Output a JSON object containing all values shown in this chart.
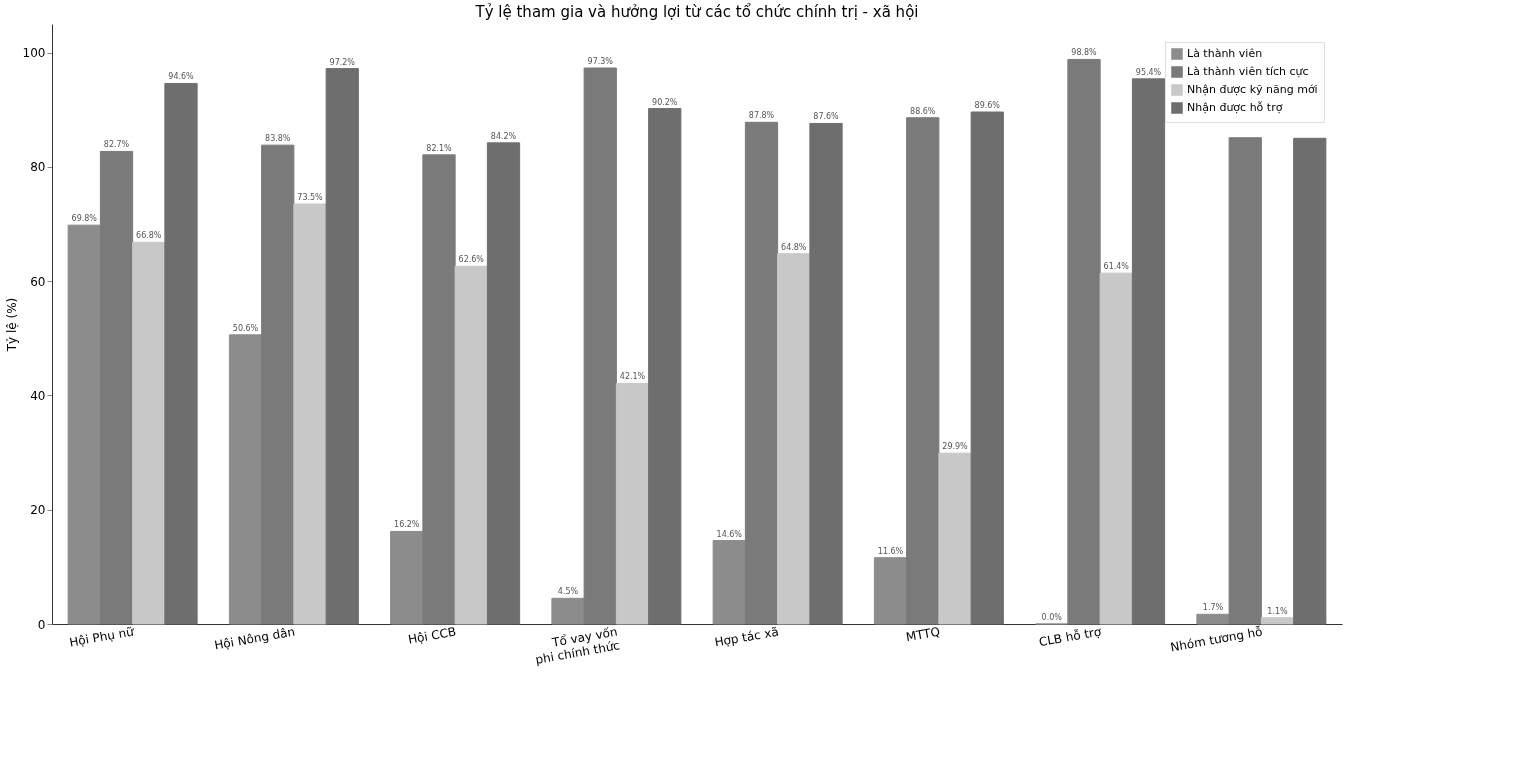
{
  "chart_data": {
    "type": "bar",
    "title": "Tỷ lệ tham gia và hưởng lợi từ các tổ chức chính trị - xã hội",
    "ylabel": "Tỷ lệ (%)",
    "categories": [
      "Hội Phụ nữ",
      "Hội Nông dân",
      "Hội CCB",
      "Tổ vay vốn\nphi chính thức",
      "Hợp tác xã",
      "MTTQ",
      "CLB hỗ trợ",
      "Nhóm tương hỗ"
    ],
    "series": [
      {
        "name": "Là thành viên",
        "color": "#8c8c8c",
        "values": [
          69.8,
          50.6,
          16.2,
          4.5,
          14.6,
          11.6,
          0.0,
          1.7
        ],
        "value_labels": [
          "69.8%",
          "50.6%",
          "16.2%",
          "4.5%",
          "14.6%",
          "11.6%",
          "0.0%",
          "1.7%"
        ]
      },
      {
        "name": "Là thành viên tích cực",
        "color": "#7a7a7a",
        "values": [
          82.7,
          83.8,
          82.1,
          97.3,
          87.8,
          88.6,
          98.8,
          85.1
        ],
        "value_labels": [
          "82.7%",
          "83.8%",
          "82.1%",
          "97.3%",
          "87.8%",
          "88.6%",
          "98.8%",
          null
        ]
      },
      {
        "name": "Nhận được kỹ năng mới",
        "color": "#c8c8c8",
        "values": [
          66.8,
          73.5,
          62.6,
          42.1,
          64.8,
          29.9,
          61.4,
          1.1
        ],
        "value_labels": [
          "66.8%",
          "73.5%",
          "62.6%",
          "42.1%",
          "64.8%",
          "29.9%",
          "61.4%",
          "1.1%"
        ]
      },
      {
        "name": "Nhận được hỗ trợ",
        "color": "#6e6e6e",
        "values": [
          94.6,
          97.2,
          84.2,
          90.2,
          87.6,
          89.6,
          95.4,
          85.0
        ],
        "value_labels": [
          "94.6%",
          "97.2%",
          "84.2%",
          "90.2%",
          "87.6%",
          "89.6%",
          "95.4%",
          null
        ]
      }
    ],
    "ylim": [
      0,
      105
    ],
    "yticks": [
      0,
      20,
      40,
      60,
      80,
      100
    ],
    "grid": false,
    "legend": "top right"
  }
}
